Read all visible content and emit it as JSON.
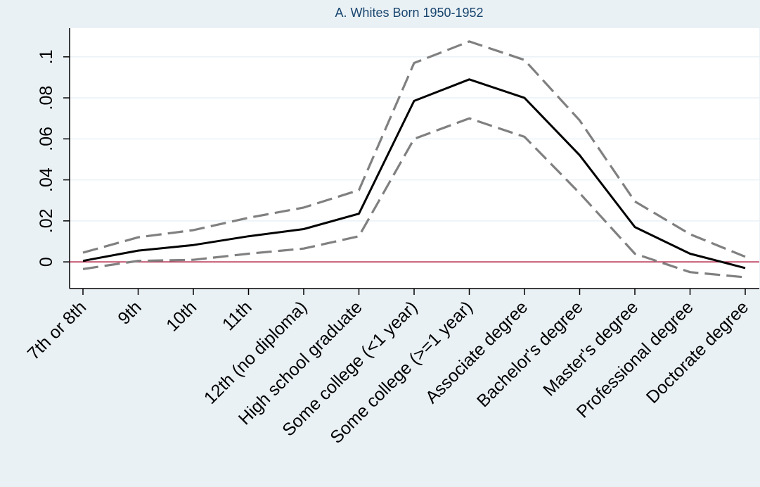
{
  "chart_data": {
    "type": "line",
    "title": "A. Whites Born 1950-1952",
    "xlabel": "",
    "ylabel": "",
    "categories": [
      "7th or 8th",
      "9th",
      "10th",
      "11th",
      "12th (no diploma)",
      "High school graduate",
      "Some college (<1 year)",
      "Some college (>=1 year)",
      "Associate degree",
      "Bachelor's degree",
      "Master's degree",
      "Professional degree",
      "Doctorate degree"
    ],
    "ylim": [
      -0.013,
      0.114
    ],
    "yticks": [
      0,
      0.02,
      0.04,
      0.06,
      0.08,
      0.1
    ],
    "ytick_labels": [
      "0",
      ".02",
      ".04",
      ".06",
      ".08",
      ".1"
    ],
    "reference_line": {
      "y": 0,
      "color": "#b32448"
    },
    "grid": true,
    "series": [
      {
        "values": [
          0.0005,
          0.0055,
          0.0082,
          0.0125,
          0.016,
          0.0235,
          0.0785,
          0.089,
          0.08,
          0.052,
          0.017,
          0.004,
          -0.003
        ],
        "color": "#000000",
        "style": "solid"
      },
      {
        "values": [
          0.0045,
          0.012,
          0.0155,
          0.0215,
          0.0265,
          0.035,
          0.097,
          0.1075,
          0.0985,
          0.069,
          0.0295,
          0.0135,
          0.0025
        ],
        "color": "#808080",
        "style": "dashed"
      },
      {
        "values": [
          -0.0035,
          0.0005,
          0.001,
          0.004,
          0.0065,
          0.0125,
          0.06,
          0.07,
          0.061,
          0.0335,
          0.004,
          -0.005,
          -0.0075
        ],
        "color": "#808080",
        "style": "dashed"
      }
    ]
  }
}
